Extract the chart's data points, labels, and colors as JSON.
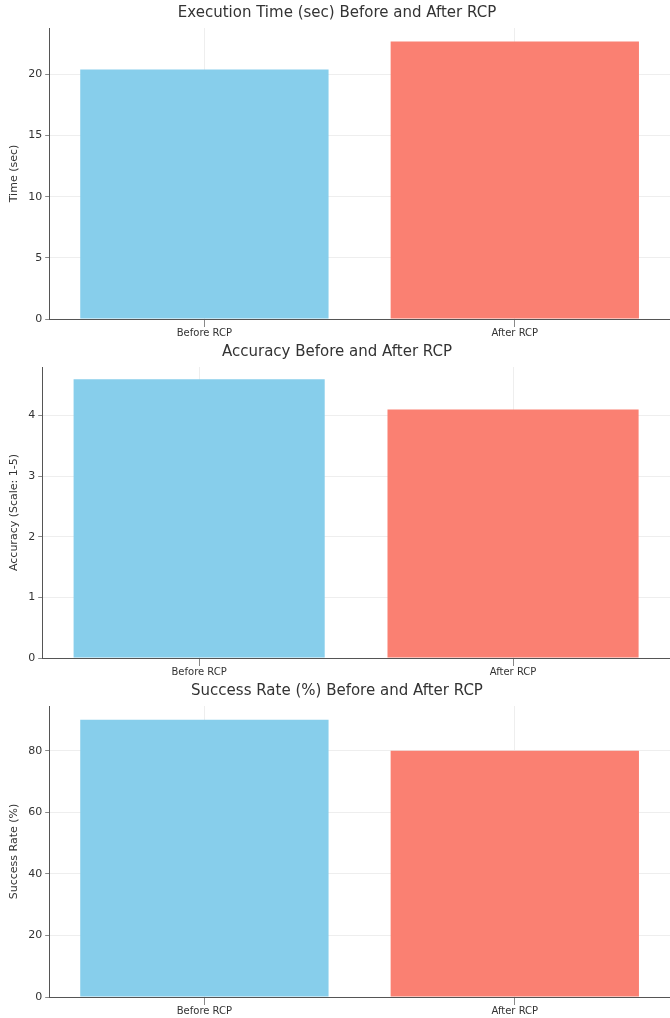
{
  "chart_data": [
    {
      "type": "bar",
      "title": "Execution Time (sec) Before and After RCP",
      "ylabel": "Time (sec)",
      "categories": [
        "Before RCP",
        "After RCP"
      ],
      "values": [
        20.4,
        22.7
      ],
      "colors": [
        "#87ceeb",
        "#fa8072"
      ],
      "ylim": [
        0,
        23.8
      ],
      "yticks": [
        0,
        5,
        10,
        15,
        20
      ],
      "grid": true
    },
    {
      "type": "bar",
      "title": "Accuracy Before and After RCP",
      "ylabel": "Accuracy (Scale: 1-5)",
      "categories": [
        "Before RCP",
        "After RCP"
      ],
      "values": [
        4.6,
        4.1
      ],
      "colors": [
        "#87ceeb",
        "#fa8072"
      ],
      "ylim": [
        0,
        4.8
      ],
      "yticks": [
        0,
        1,
        2,
        3,
        4
      ],
      "grid": true
    },
    {
      "type": "bar",
      "title": "Success Rate (%) Before and After RCP",
      "ylabel": "Success Rate (%)",
      "categories": [
        "Before RCP",
        "After RCP"
      ],
      "values": [
        90,
        80
      ],
      "colors": [
        "#87ceeb",
        "#fa8072"
      ],
      "ylim": [
        0,
        94.5
      ],
      "yticks": [
        0,
        20,
        40,
        60,
        80
      ],
      "grid": true
    }
  ]
}
